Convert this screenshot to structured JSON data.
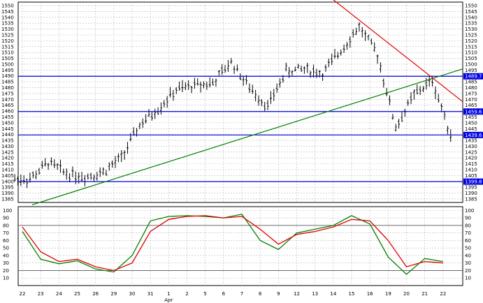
{
  "chart_data": [
    {
      "type": "candlestick",
      "yticks": [
        1385,
        1390,
        1395,
        1400,
        1405,
        1410,
        1415,
        1420,
        1425,
        1430,
        1435,
        1440,
        1445,
        1450,
        1455,
        1460,
        1465,
        1470,
        1475,
        1480,
        1485,
        1490,
        1495,
        1500,
        1505,
        1510,
        1515,
        1520,
        1525,
        1530,
        1535,
        1540,
        1545,
        1550
      ],
      "xticks": [
        "22",
        "23",
        "24",
        "25",
        "26",
        "29",
        "30",
        "31",
        "1",
        "2",
        "5",
        "6",
        "7",
        "8",
        "9",
        "12",
        "13",
        "14",
        "15",
        "16",
        "19",
        "20",
        "21",
        "22"
      ],
      "month_label": "Apr",
      "support_resistance": [
        {
          "label": "1489.7",
          "value": 1489.7
        },
        {
          "label": "1459.6",
          "value": 1459.6
        },
        {
          "label": "1439.6",
          "value": 1439.6
        },
        {
          "label": "1399.8",
          "value": 1399.8
        }
      ],
      "trendlines": [
        {
          "color": "#008000",
          "from": {
            "x": "22",
            "y": 1380
          },
          "to": {
            "x": "22",
            "y": 1496
          }
        },
        {
          "color": "#e00000",
          "from": {
            "x": "14",
            "y": 1555
          },
          "to": {
            "x": "22",
            "y": 1468
          }
        }
      ],
      "close_by_day": [
        {
          "x": "22",
          "v": 1402
        },
        {
          "x": "23",
          "v": 1416
        },
        {
          "x": "24",
          "v": 1407
        },
        {
          "x": "25",
          "v": 1404
        },
        {
          "x": "26",
          "v": 1408
        },
        {
          "x": "29",
          "v": 1420
        },
        {
          "x": "30",
          "v": 1448
        },
        {
          "x": "31",
          "v": 1462
        },
        {
          "x": "1",
          "v": 1478
        },
        {
          "x": "2",
          "v": 1482
        },
        {
          "x": "5",
          "v": 1484
        },
        {
          "x": "6",
          "v": 1502
        },
        {
          "x": "7",
          "v": 1480
        },
        {
          "x": "8",
          "v": 1464
        },
        {
          "x": "9",
          "v": 1494
        },
        {
          "x": "12",
          "v": 1496
        },
        {
          "x": "13",
          "v": 1492
        },
        {
          "x": "14",
          "v": 1512
        },
        {
          "x": "15",
          "v": 1532
        },
        {
          "x": "16",
          "v": 1508
        },
        {
          "x": "19",
          "v": 1446
        },
        {
          "x": "20",
          "v": 1474
        },
        {
          "x": "21",
          "v": 1486
        },
        {
          "x": "22",
          "v": 1440
        }
      ],
      "grid": true
    },
    {
      "type": "line",
      "yticks": [
        10,
        20,
        30,
        40,
        50,
        60,
        70,
        80,
        90,
        100
      ],
      "levels": [
        20,
        80
      ],
      "series": [
        {
          "color": "#008000",
          "values": [
            72,
            35,
            29,
            33,
            22,
            18,
            40,
            86,
            92,
            93,
            92,
            90,
            95,
            60,
            48,
            70,
            75,
            80,
            93,
            82,
            38,
            15,
            36,
            32
          ]
        },
        {
          "color": "#e00000",
          "values": [
            78,
            45,
            32,
            35,
            25,
            20,
            30,
            72,
            88,
            92,
            93,
            90,
            92,
            75,
            55,
            68,
            72,
            78,
            88,
            86,
            60,
            25,
            32,
            30
          ]
        }
      ],
      "grid": true
    }
  ]
}
